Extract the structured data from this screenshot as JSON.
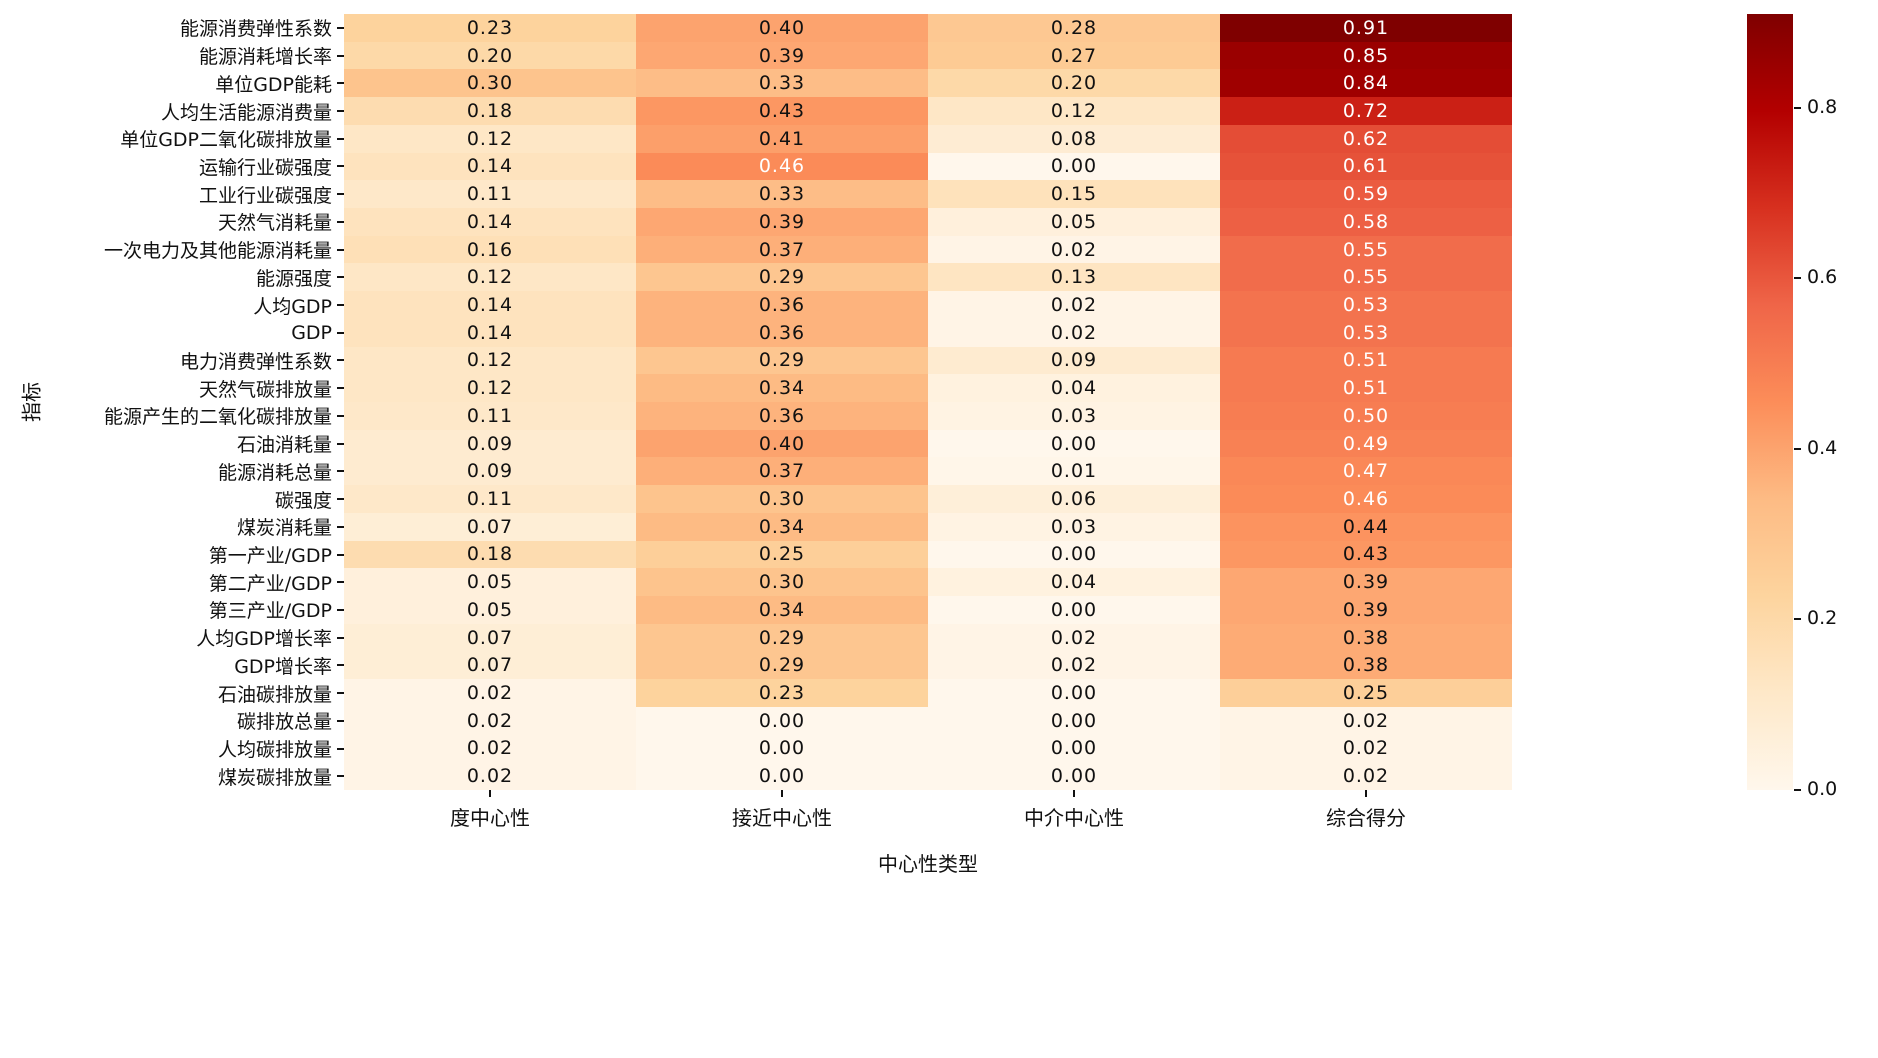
{
  "chart_data": {
    "type": "heatmap",
    "title": "",
    "xlabel": "中心性类型",
    "ylabel": "指标",
    "columns": [
      "度中心性",
      "接近中心性",
      "中介中心性",
      "综合得分"
    ],
    "rows": [
      "能源消费弹性系数",
      "能源消耗增长率",
      "单位GDP能耗",
      "人均生活能源消费量",
      "单位GDP二氧化碳排放量",
      "运输行业碳强度",
      "工业行业碳强度",
      "天然气消耗量",
      "一次电力及其他能源消耗量",
      "能源强度",
      "人均GDP",
      "GDP",
      "电力消费弹性系数",
      "天然气碳排放量",
      "能源产生的二氧化碳排放量",
      "石油消耗量",
      "能源消耗总量",
      "碳强度",
      "煤炭消耗量",
      "第一产业/GDP",
      "第二产业/GDP",
      "第三产业/GDP",
      "人均GDP增长率",
      "GDP增长率",
      "石油碳排放量",
      "碳排放总量",
      "人均碳排放量",
      "煤炭碳排放量"
    ],
    "values": [
      [
        0.23,
        0.4,
        0.28,
        0.91
      ],
      [
        0.2,
        0.39,
        0.27,
        0.85
      ],
      [
        0.3,
        0.33,
        0.2,
        0.84
      ],
      [
        0.18,
        0.43,
        0.12,
        0.72
      ],
      [
        0.12,
        0.41,
        0.08,
        0.62
      ],
      [
        0.14,
        0.46,
        0.0,
        0.61
      ],
      [
        0.11,
        0.33,
        0.15,
        0.59
      ],
      [
        0.14,
        0.39,
        0.05,
        0.58
      ],
      [
        0.16,
        0.37,
        0.02,
        0.55
      ],
      [
        0.12,
        0.29,
        0.13,
        0.55
      ],
      [
        0.14,
        0.36,
        0.02,
        0.53
      ],
      [
        0.14,
        0.36,
        0.02,
        0.53
      ],
      [
        0.12,
        0.29,
        0.09,
        0.51
      ],
      [
        0.12,
        0.34,
        0.04,
        0.51
      ],
      [
        0.11,
        0.36,
        0.03,
        0.5
      ],
      [
        0.09,
        0.4,
        0.0,
        0.49
      ],
      [
        0.09,
        0.37,
        0.01,
        0.47
      ],
      [
        0.11,
        0.3,
        0.06,
        0.46
      ],
      [
        0.07,
        0.34,
        0.03,
        0.44
      ],
      [
        0.18,
        0.25,
        0.0,
        0.43
      ],
      [
        0.05,
        0.3,
        0.04,
        0.39
      ],
      [
        0.05,
        0.34,
        0.0,
        0.39
      ],
      [
        0.07,
        0.29,
        0.02,
        0.38
      ],
      [
        0.07,
        0.29,
        0.02,
        0.38
      ],
      [
        0.02,
        0.23,
        0.0,
        0.25
      ],
      [
        0.02,
        0.0,
        0.0,
        0.02
      ],
      [
        0.02,
        0.0,
        0.0,
        0.02
      ],
      [
        0.02,
        0.0,
        0.0,
        0.02
      ]
    ],
    "vmin": 0.0,
    "vmax": 0.91,
    "value_format": "0.00",
    "colormap": "OrRd",
    "colormap_stops": [
      "#fff7ec",
      "#fee8c8",
      "#fdd49e",
      "#fdbb84",
      "#fc8d59",
      "#ef6548",
      "#d7301f",
      "#b30000",
      "#7f0000"
    ],
    "annot_white_text_threshold": 0.45,
    "colorbar_ticks": [
      0.0,
      0.2,
      0.4,
      0.6,
      0.8
    ],
    "legend_position": "right-colorbar",
    "grid": false
  }
}
